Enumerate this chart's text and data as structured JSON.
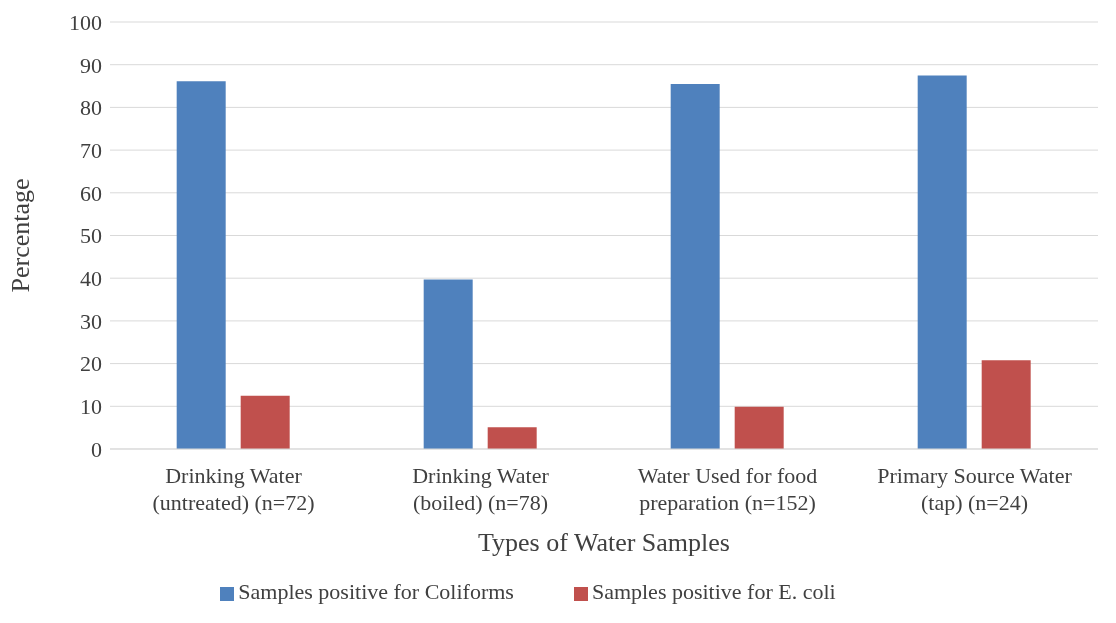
{
  "chart_data": {
    "type": "bar",
    "xlabel": "Types of Water Samples",
    "ylabel": "Percentage",
    "categories": [
      "Drinking Water (untreated) (n=72)",
      "Drinking Water (boiled) (n=78)",
      "Water Used for food preparation (n=152)",
      "Primary Source Water (tap) (n=24)"
    ],
    "series": [
      {
        "name": "Samples positive for Coliforms",
        "color": "#4f81bd",
        "values": [
          86.1,
          39.7,
          85.5,
          87.5
        ]
      },
      {
        "name": "Samples positive for E. coli",
        "color": "#c0504d",
        "values": [
          12.5,
          5.1,
          9.9,
          20.8
        ]
      }
    ],
    "ylim": [
      0,
      100
    ],
    "yticks": [
      0,
      10,
      20,
      30,
      40,
      50,
      60,
      70,
      80,
      90,
      100
    ],
    "grid": "y",
    "legend": "bottom"
  }
}
